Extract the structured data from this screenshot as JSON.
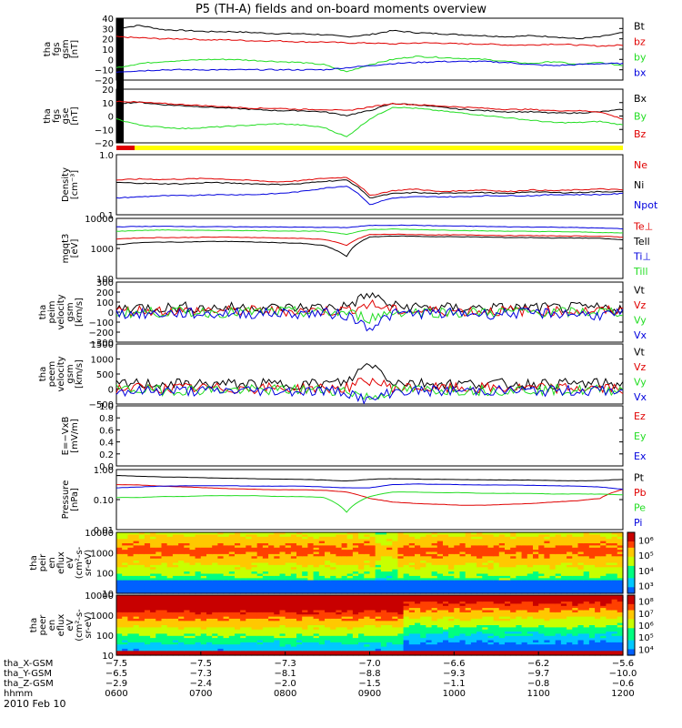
{
  "title": "P5 (TH-A) fields and on-board moments overview",
  "date": "2010 Feb 10",
  "colors": {
    "black": "#000000",
    "red": "#e00000",
    "green": "#22dd22",
    "blue": "#0000dd",
    "yellow": "#ffff00"
  },
  "chart_data": [
    {
      "id": "fgs",
      "type": "line",
      "ylabel": [
        "tha",
        "fgs",
        "gsm",
        "[nT]"
      ],
      "yticks": [
        "40",
        "30",
        "20",
        "10",
        "0",
        "−10",
        "−20"
      ],
      "ylim": [
        -20,
        40
      ],
      "series": [
        {
          "name": "Bt",
          "color": "black",
          "values": [
            30,
            33,
            29,
            28,
            27,
            27,
            26,
            25,
            25,
            24,
            22,
            24,
            28,
            26,
            25,
            24,
            23,
            22,
            23,
            22,
            20,
            22,
            26
          ]
        },
        {
          "name": "bz",
          "color": "red",
          "values": [
            22,
            21,
            20,
            20,
            19,
            19,
            18,
            18,
            17,
            17,
            16,
            16,
            15,
            16,
            16,
            15,
            15,
            14,
            14,
            15,
            14,
            13,
            14
          ]
        },
        {
          "name": "by",
          "color": "green",
          "values": [
            -8,
            -4,
            -2,
            -1,
            0,
            0,
            -1,
            -2,
            -3,
            -5,
            -12,
            -5,
            0,
            3,
            2,
            1,
            0,
            -2,
            -4,
            -2,
            -5,
            -3,
            -6
          ]
        },
        {
          "name": "bx",
          "color": "blue",
          "values": [
            -12,
            -11,
            -10,
            -10,
            -10,
            -10,
            -10,
            -10,
            -10,
            -10,
            -8,
            -6,
            -4,
            -3,
            -2,
            -2,
            -2,
            -3,
            -5,
            -6,
            -5,
            -4,
            -4
          ]
        }
      ]
    },
    {
      "id": "fgs2",
      "type": "line",
      "ylabel": [
        "tha",
        "fgs",
        "gse",
        "[nT]"
      ],
      "yticks": [
        "20",
        "10",
        "0",
        "−10",
        "−20"
      ],
      "ylim": [
        -25,
        20
      ],
      "series": [
        {
          "name": "Bx",
          "color": "black",
          "values": [
            8,
            9,
            7,
            6,
            5,
            4,
            3,
            2,
            2,
            1,
            -2,
            2,
            8,
            7,
            5,
            3,
            2,
            1,
            1,
            0,
            0,
            1,
            3
          ]
        },
        {
          "name": "By",
          "color": "green",
          "values": [
            -5,
            -10,
            -12,
            -13,
            -12,
            -11,
            -10,
            -9,
            -10,
            -12,
            -20,
            -5,
            5,
            4,
            2,
            0,
            -2,
            -4,
            -6,
            -8,
            -8,
            -7,
            -10
          ]
        },
        {
          "name": "Bz",
          "color": "red",
          "values": [
            10,
            9,
            8,
            7,
            6,
            5,
            4,
            4,
            3,
            3,
            2,
            5,
            8,
            7,
            6,
            5,
            4,
            3,
            3,
            2,
            2,
            1,
            -5
          ]
        }
      ]
    },
    {
      "id": "density",
      "type": "line",
      "log": true,
      "ylabel": [
        "Density",
        "[cm⁻³]"
      ],
      "yticks": [
        "1.0",
        "0.1"
      ],
      "ylim": [
        0.1,
        1.2
      ],
      "series": [
        {
          "name": "Ne",
          "color": "red",
          "values": [
            0.42,
            0.44,
            0.43,
            0.44,
            0.45,
            0.43,
            0.41,
            0.39,
            0.41,
            0.45,
            0.47,
            0.22,
            0.27,
            0.29,
            0.26,
            0.27,
            0.28,
            0.26,
            0.28,
            0.27,
            0.28,
            0.29,
            0.28
          ]
        },
        {
          "name": "Ni",
          "color": "black",
          "values": [
            0.38,
            0.37,
            0.36,
            0.36,
            0.38,
            0.37,
            0.36,
            0.35,
            0.36,
            0.4,
            0.42,
            0.2,
            0.24,
            0.25,
            0.24,
            0.25,
            0.25,
            0.24,
            0.26,
            0.25,
            0.25,
            0.26,
            0.26
          ]
        },
        {
          "name": "Npot",
          "color": "blue",
          "values": [
            0.2,
            0.21,
            0.22,
            0.22,
            0.23,
            0.23,
            0.23,
            0.24,
            0.26,
            0.3,
            0.33,
            0.15,
            0.2,
            0.21,
            0.21,
            0.21,
            0.22,
            0.22,
            0.22,
            0.23,
            0.23,
            0.23,
            0.24
          ]
        }
      ]
    },
    {
      "id": "temp",
      "type": "line",
      "log": true,
      "ylabel": [
        "mgqt3",
        "[eV]"
      ],
      "yticks": [
        "10000",
        "1000",
        "100"
      ],
      "ylim": [
        100,
        14000
      ],
      "series": [
        {
          "name": "Te⊥",
          "color": "red",
          "values": [
            2600,
            2800,
            2900,
            2900,
            3000,
            3000,
            2900,
            2800,
            2700,
            2500,
            1500,
            3700,
            3800,
            3700,
            3600,
            3600,
            3500,
            3400,
            3400,
            3300,
            3300,
            3200,
            3000
          ]
        },
        {
          "name": "Tell",
          "color": "black",
          "values": [
            1600,
            1900,
            2000,
            2000,
            2100,
            2100,
            2000,
            1900,
            1800,
            1500,
            600,
            3000,
            3300,
            3200,
            3100,
            3100,
            3000,
            2900,
            2900,
            2800,
            2800,
            2700,
            2400
          ]
        },
        {
          "name": "Ti⊥",
          "color": "blue",
          "values": [
            7000,
            7200,
            7300,
            7200,
            7100,
            7000,
            7000,
            6900,
            6800,
            6700,
            6600,
            7800,
            8000,
            7900,
            7600,
            7400,
            7200,
            7000,
            6900,
            6800,
            6600,
            6300,
            6000
          ]
        },
        {
          "name": "Till",
          "color": "green",
          "values": [
            4800,
            5200,
            5400,
            5300,
            5200,
            5200,
            5100,
            5000,
            4900,
            4800,
            3800,
            5600,
            5800,
            5600,
            5400,
            5200,
            5000,
            4900,
            4800,
            4700,
            4600,
            4400,
            4200
          ]
        }
      ]
    },
    {
      "id": "vi",
      "type": "line",
      "ylabel": [
        "tha",
        "peim",
        "velocity",
        "gsm",
        "[km/s]"
      ],
      "yticks": [
        "300",
        "200",
        "100",
        "0",
        "−100",
        "−200",
        "−300"
      ],
      "ylim": [
        -300,
        300
      ],
      "series": [
        {
          "name": "Vt",
          "color": "black",
          "values": [
            40,
            50,
            45,
            50,
            40,
            45,
            50,
            40,
            45,
            50,
            60,
            180,
            60,
            50,
            45,
            40,
            45,
            40,
            45,
            40,
            45,
            40,
            40
          ]
        },
        {
          "name": "Vz",
          "color": "red",
          "values": [
            10,
            20,
            15,
            10,
            20,
            10,
            15,
            10,
            15,
            10,
            20,
            80,
            20,
            10,
            15,
            10,
            10,
            15,
            10,
            10,
            15,
            10,
            10
          ]
        },
        {
          "name": "Vy",
          "color": "green",
          "values": [
            0,
            -5,
            0,
            5,
            0,
            -5,
            0,
            5,
            0,
            -5,
            -10,
            -60,
            0,
            5,
            0,
            -5,
            0,
            5,
            0,
            -5,
            0,
            5,
            0
          ]
        },
        {
          "name": "Vx",
          "color": "blue",
          "values": [
            -10,
            -20,
            -15,
            -10,
            -20,
            -10,
            -15,
            -10,
            -15,
            -10,
            -30,
            -150,
            -20,
            -10,
            -15,
            -10,
            -20,
            -10,
            -15,
            -10,
            -20,
            -30,
            -20
          ]
        }
      ]
    },
    {
      "id": "ve",
      "type": "line",
      "ylabel": [
        "tha",
        "peem",
        "velocity",
        "gsm",
        "[km/s]"
      ],
      "yticks": [
        "1500",
        "1000",
        "500",
        "0",
        "−500"
      ],
      "ylim": [
        -500,
        1500
      ],
      "series": [
        {
          "name": "Vt",
          "color": "black",
          "values": [
            150,
            180,
            170,
            160,
            170,
            165,
            170,
            160,
            170,
            180,
            220,
            900,
            250,
            200,
            180,
            170,
            180,
            170,
            175,
            170,
            180,
            175,
            170
          ]
        },
        {
          "name": "Vz",
          "color": "red",
          "values": [
            20,
            30,
            20,
            25,
            30,
            20,
            25,
            30,
            20,
            25,
            40,
            300,
            40,
            30,
            25,
            20,
            30,
            25,
            20,
            25,
            30,
            25,
            20
          ]
        },
        {
          "name": "Vy",
          "color": "green",
          "values": [
            -30,
            -20,
            -40,
            -30,
            -20,
            -30,
            -40,
            -30,
            -20,
            -30,
            -50,
            -300,
            -40,
            -30,
            -20,
            -30,
            -40,
            -30,
            -20,
            -30,
            -40,
            -30,
            -20
          ]
        },
        {
          "name": "Vx",
          "color": "blue",
          "values": [
            -60,
            -70,
            -50,
            -60,
            -70,
            -60,
            -50,
            -60,
            -70,
            -60,
            -90,
            -400,
            -80,
            -60,
            -70,
            -60,
            -50,
            -60,
            -70,
            -60,
            -50,
            -60,
            -70
          ]
        }
      ]
    },
    {
      "id": "efield",
      "type": "line",
      "ylabel": [
        "E=−VxB",
        "[mV/m]"
      ],
      "yticks": [
        "1.0",
        "0.8",
        "0.6",
        "0.4",
        "0.2",
        "0.0"
      ],
      "ylim": [
        0,
        1
      ],
      "series": [
        {
          "name": "Ez",
          "color": "red",
          "values": []
        },
        {
          "name": "Ey",
          "color": "green",
          "values": []
        },
        {
          "name": "Ex",
          "color": "blue",
          "values": []
        }
      ]
    },
    {
      "id": "pressure",
      "type": "line",
      "log": true,
      "ylabel": [
        "Pressure",
        "[nPa]"
      ],
      "yticks": [
        "1.00",
        "0.10",
        "0.01"
      ],
      "ylim": [
        0.01,
        1.2
      ],
      "series": [
        {
          "name": "Pt",
          "color": "black",
          "values": [
            0.75,
            0.7,
            0.67,
            0.65,
            0.62,
            0.6,
            0.58,
            0.56,
            0.55,
            0.52,
            0.48,
            0.55,
            0.58,
            0.56,
            0.55,
            0.54,
            0.53,
            0.52,
            0.52,
            0.5,
            0.49,
            0.5,
            0.55
          ]
        },
        {
          "name": "Pb",
          "color": "red",
          "values": [
            0.36,
            0.35,
            0.32,
            0.3,
            0.28,
            0.26,
            0.25,
            0.24,
            0.24,
            0.23,
            0.2,
            0.12,
            0.09,
            0.08,
            0.075,
            0.07,
            0.07,
            0.075,
            0.08,
            0.09,
            0.1,
            0.12,
            0.25
          ]
        },
        {
          "name": "Pe",
          "color": "green",
          "values": [
            0.13,
            0.13,
            0.14,
            0.14,
            0.15,
            0.15,
            0.15,
            0.14,
            0.14,
            0.13,
            0.04,
            0.14,
            0.2,
            0.2,
            0.19,
            0.19,
            0.18,
            0.18,
            0.18,
            0.17,
            0.17,
            0.17,
            0.16
          ]
        },
        {
          "name": "Pi",
          "color": "blue",
          "values": [
            0.28,
            0.3,
            0.32,
            0.33,
            0.33,
            0.33,
            0.32,
            0.32,
            0.32,
            0.3,
            0.28,
            0.28,
            0.36,
            0.38,
            0.37,
            0.36,
            0.35,
            0.35,
            0.34,
            0.33,
            0.32,
            0.3,
            0.25
          ]
        }
      ]
    },
    {
      "id": "ion_spec",
      "type": "heatmap",
      "ylabel": [
        "tha",
        "peir",
        "en",
        "eflux",
        "eV",
        "(cm²-s-",
        "sr-eV)"
      ],
      "yticks": [
        "10000",
        "1000",
        "100",
        "10"
      ],
      "colorbar": [
        "10⁶",
        "10⁵",
        "10⁴",
        "10³"
      ]
    },
    {
      "id": "elec_spec",
      "type": "heatmap",
      "ylabel": [
        "tha",
        "peer",
        "en",
        "eflux",
        "eV",
        "(cm²-s-",
        "sr-eV)"
      ],
      "yticks": [
        "10000",
        "1000",
        "100",
        "10"
      ],
      "colorbar": [
        "10⁸",
        "10⁷",
        "10⁶",
        "10⁵",
        "10⁴"
      ]
    }
  ],
  "xaxis": {
    "rows": [
      {
        "label": "tha_X-GSM",
        "values": [
          "−7.5",
          "−7.5",
          "−7.3",
          "−7.0",
          "−6.6",
          "−6.2",
          "−5.6"
        ]
      },
      {
        "label": "tha_Y-GSM",
        "values": [
          "−6.5",
          "−7.3",
          "−8.1",
          "−8.8",
          "−9.3",
          "−9.7",
          "−10.0"
        ]
      },
      {
        "label": "tha_Z-GSM",
        "values": [
          "−2.9",
          "−2.4",
          "−2.0",
          "−1.5",
          "−1.1",
          "−0.8",
          "−0.6"
        ]
      },
      {
        "label": "hhmm",
        "values": [
          "0600",
          "0700",
          "0800",
          "0900",
          "1000",
          "1100",
          "1200"
        ]
      }
    ]
  }
}
